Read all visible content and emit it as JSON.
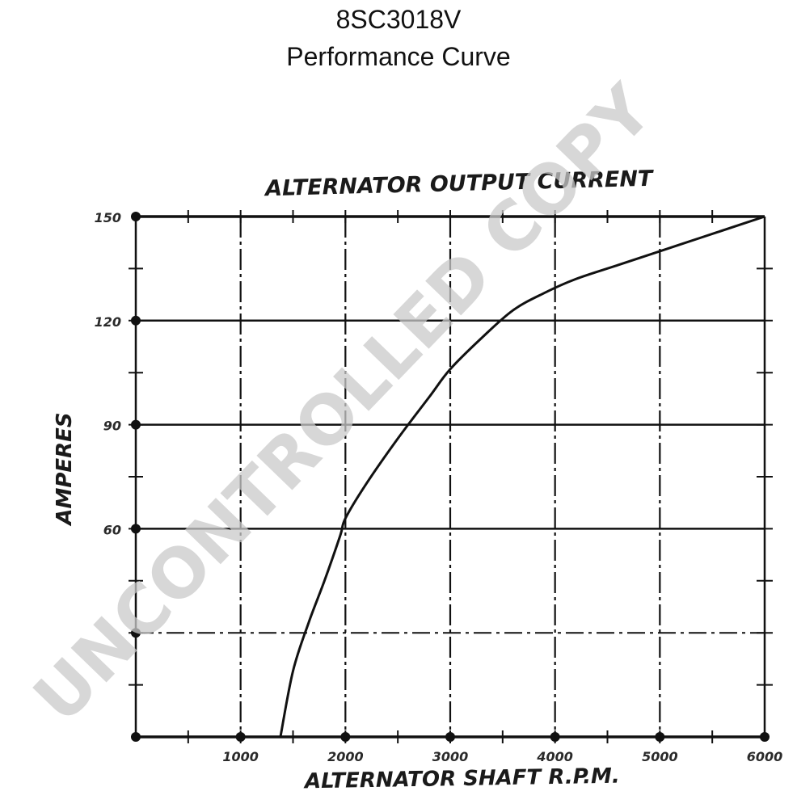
{
  "header": {
    "model": "8SC3018V",
    "subtitle": "Performance Curve"
  },
  "watermark": {
    "text": "UNCONTROLLED COPY",
    "color": "#c9c9c9"
  },
  "chart_data": {
    "type": "line",
    "title": "ALTERNATOR OUTPUT CURRENT",
    "xlabel": "ALTERNATOR SHAFT R.P.M.",
    "ylabel": "AMPERES",
    "xlim": [
      0,
      6000
    ],
    "ylim": [
      0,
      150
    ],
    "x_ticks": [
      {
        "value": 1000,
        "label": "1000"
      },
      {
        "value": 2000,
        "label": "2000"
      },
      {
        "value": 3000,
        "label": "3000"
      },
      {
        "value": 4000,
        "label": "4000"
      },
      {
        "value": 5000,
        "label": "5000"
      },
      {
        "value": 6000,
        "label": "6000"
      }
    ],
    "y_ticks": [
      {
        "value": 30,
        "label": ""
      },
      {
        "value": 60,
        "label": "60"
      },
      {
        "value": 90,
        "label": "90"
      },
      {
        "value": 120,
        "label": "120"
      },
      {
        "value": 150,
        "label": "150"
      }
    ],
    "grid": true,
    "series": [
      {
        "name": "",
        "x": [
          1380,
          1500,
          1650,
          1800,
          1950,
          2000,
          2200,
          2500,
          2800,
          3000,
          3300,
          3600,
          3900,
          4200,
          4600,
          5000,
          5400,
          5800,
          6000
        ],
        "y": [
          0,
          19,
          33,
          45,
          58,
          63,
          73,
          86,
          98,
          106,
          115,
          123,
          128,
          132,
          136,
          140,
          144,
          148,
          150
        ]
      }
    ]
  }
}
